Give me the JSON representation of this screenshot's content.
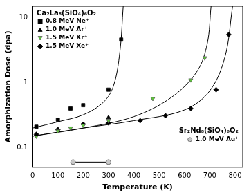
{
  "chart_data": {
    "type": "scatter",
    "x_label": "Temperature (K)",
    "y_label": "Amorphization Dose (dpa)",
    "xlim": [
      0,
      830
    ],
    "xticks": [
      0,
      100,
      200,
      300,
      400,
      500,
      600,
      700,
      800
    ],
    "ylim": [
      0.05,
      15
    ],
    "yticks": [
      0.1,
      1,
      10
    ],
    "log": "y",
    "grid": false,
    "legend": "upper left",
    "annotations": [
      {
        "text": "Ca₂La₈(SiO₄)₆O₂",
        "legend": "upper left"
      },
      {
        "text": "Sr₂Nd₈(SiO₄)₆O₂",
        "legend": "lower right"
      }
    ],
    "series": [
      {
        "name": "0.8 MeV Ne⁺",
        "color": "#000000",
        "marker": "square",
        "line_style": "none",
        "x": [
          15,
          100,
          150,
          200,
          300,
          350
        ],
        "values": [
          0.21,
          0.27,
          0.4,
          0.45,
          0.78,
          4.6
        ]
      },
      {
        "name": "1.0 MeV Ar⁺",
        "color": "#000000",
        "marker": "triangle",
        "line_style": "none",
        "x": [
          15,
          300
        ],
        "values": [
          0.16,
          0.29
        ]
      },
      {
        "name": "1.5 MeV Kr⁺",
        "color": "#5ec43c",
        "marker": "triangle-down",
        "line_style": "none",
        "x": [
          15,
          100,
          150,
          200,
          300,
          475,
          625,
          680
        ],
        "values": [
          0.15,
          0.18,
          0.2,
          0.22,
          0.26,
          0.57,
          1.1,
          2.4
        ]
      },
      {
        "name": "1.5 MeV Xe⁺",
        "color": "#000000",
        "marker": "diamond",
        "line_style": "none",
        "x": [
          15,
          100,
          200,
          300,
          425,
          525,
          625,
          725,
          775
        ],
        "values": [
          0.16,
          0.19,
          0.23,
          0.24,
          0.26,
          0.31,
          0.4,
          0.78,
          5.5
        ]
      },
      {
        "name": "1.0 MeV Au⁺",
        "color": "#c8c8c8",
        "marker": "circle",
        "line_style": "solid",
        "legend": "lower right",
        "x": [
          160,
          300
        ],
        "values": [
          0.06,
          0.06
        ]
      },
      {
        "type": "line",
        "color": "#000000",
        "marker": "none",
        "line_style": "solid",
        "x": [
          0,
          100,
          200,
          280,
          320,
          345,
          358
        ],
        "values": [
          0.2,
          0.25,
          0.32,
          0.5,
          0.9,
          3,
          15
        ]
      },
      {
        "type": "line",
        "color": "#000000",
        "marker": "none",
        "line_style": "solid",
        "x": [
          0,
          200,
          400,
          550,
          650,
          690,
          705
        ],
        "values": [
          0.15,
          0.2,
          0.3,
          0.6,
          1.5,
          4,
          15
        ]
      },
      {
        "type": "line",
        "color": "#000000",
        "marker": "none",
        "line_style": "solid",
        "x": [
          0,
          200,
          400,
          600,
          700,
          760,
          790
        ],
        "values": [
          0.15,
          0.2,
          0.26,
          0.38,
          0.75,
          2.5,
          15
        ]
      }
    ]
  }
}
